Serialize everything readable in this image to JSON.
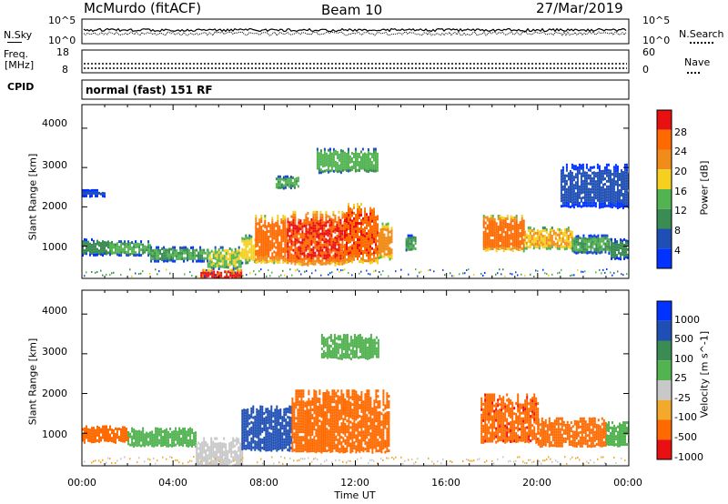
{
  "header": {
    "station": "McMurdo (fitACF)",
    "beam": "Beam 10",
    "date": "27/Mar/2019"
  },
  "noise_panel": {
    "left_label": "N.Sky",
    "right_label": "N.Search",
    "left_ticks": [
      "10^5",
      "10^0"
    ],
    "right_ticks": [
      "10^5",
      "10^0"
    ]
  },
  "freq_panel": {
    "left_label_1": "Freq.",
    "left_label_2": "[MHz]",
    "right_label": "Nave",
    "left_ticks": [
      "18",
      "8"
    ],
    "right_ticks": [
      "60",
      "0"
    ]
  },
  "cpid": {
    "label": "CPID",
    "mode": "normal (fast) 151 RF"
  },
  "time_axis": {
    "label": "Time UT",
    "ticks": [
      "00:00",
      "04:00",
      "08:00",
      "12:00",
      "16:00",
      "20:00",
      "00:00"
    ]
  },
  "colors": {
    "power": [
      "#0033ff",
      "#1f4fb5",
      "#3a8c52",
      "#52b350",
      "#f5d020",
      "#f08c1a",
      "#ff6a00",
      "#e81010"
    ],
    "velocity": [
      "#e81010",
      "#ff6a00",
      "#f2a92c",
      "#c8c8c8",
      "#52b350",
      "#3a8c52",
      "#1f4fb5",
      "#0033ff"
    ]
  },
  "chart_data": [
    {
      "type": "heatmap",
      "title": "",
      "xlabel": "Time UT",
      "ylabel": "Slant Range [km]",
      "x_unit": "hours UT",
      "xlim": [
        0,
        24
      ],
      "ylim": [
        180,
        4600
      ],
      "y_ticks": [
        "1000",
        "2000",
        "3000",
        "4000"
      ],
      "colorbar": {
        "label": "Power [dB]",
        "ticks": [
          "4",
          "8",
          "12",
          "16",
          "20",
          "24",
          "28"
        ],
        "range": [
          0,
          32
        ]
      },
      "regions": [
        {
          "t0": 0.0,
          "t1": 1.2,
          "r0": 800,
          "r1": 1200,
          "value": 10
        },
        {
          "t0": 1.2,
          "t1": 3.0,
          "r0": 800,
          "r1": 1150,
          "value": 13
        },
        {
          "t0": 3.0,
          "t1": 5.5,
          "r0": 650,
          "r1": 1000,
          "value": 12
        },
        {
          "t0": 5.5,
          "t1": 7.0,
          "r0": 450,
          "r1": 1000,
          "value": 16
        },
        {
          "t0": 5.2,
          "t1": 7.0,
          "r0": 180,
          "r1": 420,
          "value": 29
        },
        {
          "t0": 7.0,
          "t1": 7.6,
          "r0": 600,
          "r1": 1300,
          "value": 18
        },
        {
          "t0": 7.6,
          "t1": 9.0,
          "r0": 600,
          "r1": 1800,
          "value": 26
        },
        {
          "t0": 9.0,
          "t1": 11.5,
          "r0": 550,
          "r1": 1900,
          "value": 28
        },
        {
          "t0": 11.5,
          "t1": 13.0,
          "r0": 600,
          "r1": 2100,
          "value": 27
        },
        {
          "t0": 13.0,
          "t1": 13.6,
          "r0": 700,
          "r1": 1600,
          "value": 22
        },
        {
          "t0": 14.2,
          "t1": 14.6,
          "r0": 900,
          "r1": 1300,
          "value": 12
        },
        {
          "t0": 17.6,
          "t1": 19.4,
          "r0": 900,
          "r1": 1800,
          "value": 26
        },
        {
          "t0": 19.4,
          "t1": 21.5,
          "r0": 950,
          "r1": 1500,
          "value": 20
        },
        {
          "t0": 21.5,
          "t1": 23.2,
          "r0": 850,
          "r1": 1300,
          "value": 12
        },
        {
          "t0": 23.2,
          "t1": 24.0,
          "r0": 700,
          "r1": 1200,
          "value": 10
        },
        {
          "t0": 0.0,
          "t1": 1.0,
          "r0": 2300,
          "r1": 2450,
          "value": 6
        },
        {
          "t0": 10.3,
          "t1": 13.0,
          "r0": 2900,
          "r1": 3500,
          "value": 14
        },
        {
          "t0": 8.5,
          "t1": 9.5,
          "r0": 2500,
          "r1": 2800,
          "value": 13
        },
        {
          "t0": 21.0,
          "t1": 24.0,
          "r0": 2000,
          "r1": 3100,
          "value": 6
        }
      ]
    },
    {
      "type": "heatmap",
      "title": "",
      "xlabel": "Time UT",
      "ylabel": "Slant Range [km]",
      "x_unit": "hours UT",
      "xlim": [
        0,
        24
      ],
      "ylim": [
        180,
        4600
      ],
      "y_ticks": [
        "1000",
        "2000",
        "3000",
        "4000"
      ],
      "colorbar": {
        "label": "Velocity [m s^-1]",
        "ticks": [
          "1000",
          "500",
          "100",
          "25",
          "-25",
          "-100",
          "-500",
          "-1000"
        ],
        "range": [
          -1000,
          1000
        ]
      },
      "regions": [
        {
          "t0": 0.0,
          "t1": 2.0,
          "r0": 800,
          "r1": 1200,
          "value": -300
        },
        {
          "t0": 2.0,
          "t1": 5.0,
          "r0": 700,
          "r1": 1150,
          "value": 60
        },
        {
          "t0": 5.0,
          "t1": 7.0,
          "r0": 200,
          "r1": 900,
          "value": 0
        },
        {
          "t0": 7.0,
          "t1": 9.2,
          "r0": 600,
          "r1": 1700,
          "value": 300
        },
        {
          "t0": 9.2,
          "t1": 13.5,
          "r0": 550,
          "r1": 2100,
          "value": -300
        },
        {
          "t0": 17.5,
          "t1": 20.0,
          "r0": 800,
          "r1": 2000,
          "value": -400
        },
        {
          "t0": 20.0,
          "t1": 23.0,
          "r0": 700,
          "r1": 1400,
          "value": -300
        },
        {
          "t0": 23.0,
          "t1": 24.0,
          "r0": 700,
          "r1": 1300,
          "value": 60
        },
        {
          "t0": 10.5,
          "t1": 13.0,
          "r0": 2900,
          "r1": 3500,
          "value": 60
        }
      ]
    }
  ]
}
